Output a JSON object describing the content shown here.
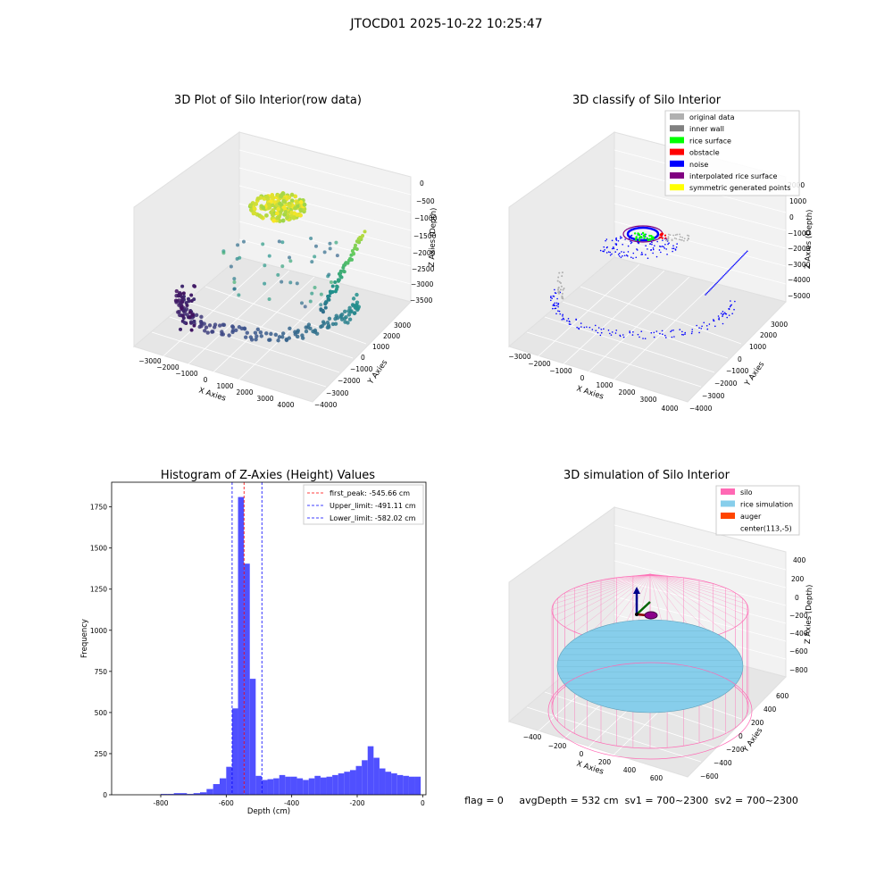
{
  "figure_title": "JTOCD01 2025-10-22 10:25:47",
  "panels": {
    "p1": {
      "title": "3D Plot of Silo Interior(row data)",
      "xlabel": "X Axies",
      "ylabel": "Y Axies",
      "zlabel": "Z Axies (Depth)",
      "xticks": [
        "−3000",
        "−2000",
        "−1000",
        "0",
        "1000",
        "2000",
        "3000",
        "4000"
      ],
      "yticks": [
        "−4000",
        "−3000",
        "−2000",
        "−1000",
        "0",
        "1000",
        "2000",
        "3000"
      ],
      "zticks": [
        "0",
        "−500",
        "−1000",
        "−1500",
        "−2000",
        "−2500",
        "−3000",
        "−3500"
      ]
    },
    "p2": {
      "title": "3D classify of Silo Interior",
      "xlabel": "X Axies",
      "ylabel": "Y Axies",
      "zlabel": "Z Axies (Depth)",
      "xticks": [
        "−3000",
        "−2000",
        "−1000",
        "0",
        "1000",
        "2000",
        "3000",
        "4000"
      ],
      "yticks": [
        "−4000",
        "−3000",
        "−2000",
        "−1000",
        "0",
        "1000",
        "2000",
        "3000"
      ],
      "zticks": [
        "2000",
        "1000",
        "0",
        "−1000",
        "−2000",
        "−3000",
        "−4000",
        "−5000"
      ],
      "legend": [
        {
          "label": "original data",
          "color": "#b0b0b0"
        },
        {
          "label": "inner wall",
          "color": "#808080"
        },
        {
          "label": "rice surface",
          "color": "#00ff00"
        },
        {
          "label": "obstacle",
          "color": "#ff0000"
        },
        {
          "label": "noise",
          "color": "#0000ff"
        },
        {
          "label": "interpolated rice surface",
          "color": "#800080"
        },
        {
          "label": "symmetric generated points",
          "color": "#ffff00"
        }
      ]
    },
    "p3": {
      "title": "Histogram of Z-Axies (Height) Values",
      "xlabel": "Depth (cm)",
      "ylabel": "Frequency",
      "legend": [
        {
          "label": "first_peak: -545.66 cm",
          "color": "#ff0000"
        },
        {
          "label": "Upper_limit: -491.11 cm",
          "color": "#0000ff"
        },
        {
          "label": "Lower_limit: -582.02 cm",
          "color": "#0000ff"
        }
      ]
    },
    "p4": {
      "title": "3D simulation of Silo Interior",
      "xlabel": "X Axies",
      "ylabel": "Y Axies",
      "zlabel": "Z Axies (Depth)",
      "xticks": [
        "−400",
        "−200",
        "0",
        "200",
        "400",
        "600"
      ],
      "yticks": [
        "−600",
        "−400",
        "−200",
        "0",
        "200",
        "400",
        "600"
      ],
      "zticks": [
        "400",
        "200",
        "0",
        "−200",
        "−400",
        "−600",
        "−800"
      ],
      "legend": [
        {
          "label": "silo",
          "color": "#ff69b4"
        },
        {
          "label": "rice simulation",
          "color": "#87ceeb"
        },
        {
          "label": "auger",
          "color": "#ff4500"
        },
        {
          "label": "center(113,-5)",
          "color": null
        }
      ]
    }
  },
  "status_line": "flag = 0     avgDepth = 532 cm  sv1 = 700~2300  sv2 = 700~2300",
  "chart_data": [
    {
      "type": "histogram",
      "title": "Histogram of Z-Axies (Height) Values",
      "xlabel": "Depth (cm)",
      "ylabel": "Frequency",
      "xlim": [
        -950,
        10
      ],
      "ylim": [
        0,
        1900
      ],
      "xticks": [
        -800,
        -600,
        -400,
        -200,
        0
      ],
      "yticks": [
        0,
        250,
        500,
        750,
        1000,
        1250,
        1500,
        1750
      ],
      "bar_color": "#5050ff",
      "bins": [
        [
          -800,
          -780,
          5
        ],
        [
          -780,
          -760,
          5
        ],
        [
          -760,
          -740,
          10
        ],
        [
          -740,
          -720,
          10
        ],
        [
          -720,
          -700,
          5
        ],
        [
          -700,
          -680,
          10
        ],
        [
          -680,
          -660,
          15
        ],
        [
          -660,
          -640,
          35
        ],
        [
          -640,
          -620,
          65
        ],
        [
          -620,
          -600,
          100
        ],
        [
          -600,
          -582,
          170
        ],
        [
          -582,
          -564,
          525
        ],
        [
          -564,
          -546,
          1810
        ],
        [
          -546,
          -528,
          1405
        ],
        [
          -528,
          -510,
          705
        ],
        [
          -510,
          -492,
          115
        ],
        [
          -492,
          -474,
          90
        ],
        [
          -474,
          -456,
          95
        ],
        [
          -456,
          -438,
          100
        ],
        [
          -438,
          -420,
          120
        ],
        [
          -420,
          -402,
          110
        ],
        [
          -402,
          -384,
          110
        ],
        [
          -384,
          -366,
          100
        ],
        [
          -366,
          -348,
          90
        ],
        [
          -348,
          -330,
          100
        ],
        [
          -330,
          -312,
          115
        ],
        [
          -312,
          -294,
          105
        ],
        [
          -294,
          -276,
          110
        ],
        [
          -276,
          -258,
          120
        ],
        [
          -258,
          -240,
          130
        ],
        [
          -240,
          -222,
          140
        ],
        [
          -222,
          -204,
          150
        ],
        [
          -204,
          -186,
          175
        ],
        [
          -186,
          -168,
          210
        ],
        [
          -168,
          -150,
          295
        ],
        [
          -150,
          -132,
          225
        ],
        [
          -132,
          -114,
          160
        ],
        [
          -114,
          -96,
          140
        ],
        [
          -96,
          -78,
          130
        ],
        [
          -78,
          -60,
          120
        ],
        [
          -60,
          -42,
          115
        ],
        [
          -42,
          -24,
          110
        ],
        [
          -24,
          -6,
          110
        ]
      ],
      "vlines": [
        {
          "x": -545.66,
          "color": "#ff0000",
          "label": "first_peak: -545.66 cm"
        },
        {
          "x": -491.11,
          "color": "#0000ff",
          "label": "Upper_limit: -491.11 cm"
        },
        {
          "x": -582.02,
          "color": "#0000ff",
          "label": "Lower_limit: -582.02 cm"
        }
      ],
      "legend_position": "top-right"
    },
    {
      "type": "scatter3d",
      "title": "3D Plot of Silo Interior(row data)",
      "xlim": [
        -3500,
        4500
      ],
      "ylim": [
        -4000,
        3500
      ],
      "zlim": [
        -3600,
        100
      ],
      "colormap": "viridis by depth",
      "note": "points visually approximated"
    },
    {
      "type": "scatter3d",
      "title": "3D classify of Silo Interior",
      "xlim": [
        -3500,
        4500
      ],
      "ylim": [
        -4000,
        3500
      ],
      "zlim": [
        -5200,
        2200
      ]
    },
    {
      "type": "surface3d",
      "title": "3D simulation of Silo Interior",
      "xlim": [
        -550,
        750
      ],
      "ylim": [
        -750,
        700
      ],
      "zlim": [
        -900,
        450
      ]
    }
  ]
}
